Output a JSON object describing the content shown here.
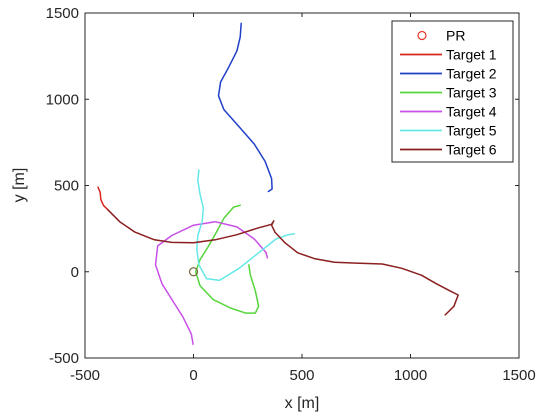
{
  "chart_data": {
    "type": "line",
    "xlabel": "x [m]",
    "ylabel": "y [m]",
    "xlim": [
      -500,
      1500
    ],
    "ylim": [
      -500,
      1500
    ],
    "xticks": [
      -500,
      0,
      500,
      1000,
      1500
    ],
    "yticks": [
      -500,
      0,
      500,
      1000,
      1500
    ],
    "xtick_labels": [
      "-500",
      "0",
      "500",
      "1000",
      "1500"
    ],
    "ytick_labels": [
      "-500",
      "0",
      "500",
      "1000",
      "1500"
    ],
    "grid": false,
    "legend_position": "top-right",
    "marker": {
      "name": "PR",
      "x": 0,
      "y": 0,
      "symbol": "circle",
      "color": "#e8392a"
    },
    "series": [
      {
        "name": "Target 1",
        "color": "#d9261c",
        "points": [
          [
            -440,
            490
          ],
          [
            -430,
            460
          ],
          [
            -427,
            420
          ],
          [
            -415,
            385
          ],
          [
            -395,
            360
          ]
        ]
      },
      {
        "name": "Target 2",
        "color": "#1f3fc8",
        "points": [
          [
            220,
            1440
          ],
          [
            215,
            1360
          ],
          [
            200,
            1280
          ],
          [
            160,
            1180
          ],
          [
            125,
            1100
          ],
          [
            115,
            1020
          ],
          [
            140,
            940
          ],
          [
            210,
            840
          ],
          [
            280,
            740
          ],
          [
            330,
            640
          ],
          [
            360,
            540
          ],
          [
            362,
            480
          ],
          [
            345,
            465
          ]
        ]
      },
      {
        "name": "Target 3",
        "color": "#55d63b",
        "points": [
          [
            215,
            385
          ],
          [
            185,
            375
          ],
          [
            140,
            310
          ],
          [
            110,
            240
          ],
          [
            70,
            150
          ],
          [
            30,
            70
          ],
          [
            10,
            0
          ],
          [
            30,
            -80
          ],
          [
            90,
            -160
          ],
          [
            170,
            -210
          ],
          [
            240,
            -240
          ],
          [
            285,
            -240
          ],
          [
            300,
            -200
          ],
          [
            285,
            -110
          ],
          [
            262,
            -20
          ],
          [
            255,
            40
          ]
        ]
      },
      {
        "name": "Target 4",
        "color": "#c84fe8",
        "points": [
          [
            -2,
            -420
          ],
          [
            -10,
            -360
          ],
          [
            -50,
            -260
          ],
          [
            -100,
            -160
          ],
          [
            -145,
            -70
          ],
          [
            -175,
            40
          ],
          [
            -165,
            150
          ],
          [
            -100,
            210
          ],
          [
            0,
            270
          ],
          [
            100,
            290
          ],
          [
            200,
            260
          ],
          [
            280,
            190
          ],
          [
            335,
            110
          ],
          [
            340,
            80
          ]
        ]
      },
      {
        "name": "Target 5",
        "color": "#66e8e8",
        "points": [
          [
            25,
            590
          ],
          [
            20,
            530
          ],
          [
            30,
            450
          ],
          [
            45,
            370
          ],
          [
            40,
            290
          ],
          [
            20,
            210
          ],
          [
            15,
            130
          ],
          [
            25,
            40
          ],
          [
            60,
            -40
          ],
          [
            120,
            -50
          ],
          [
            210,
            20
          ],
          [
            300,
            110
          ],
          [
            380,
            190
          ],
          [
            435,
            215
          ],
          [
            465,
            220
          ]
        ]
      },
      {
        "name": "Target 6",
        "color": "#8b1f1f",
        "points": [
          [
            -395,
            360
          ],
          [
            -340,
            290
          ],
          [
            -270,
            230
          ],
          [
            -180,
            185
          ],
          [
            -100,
            170
          ],
          [
            0,
            168
          ],
          [
            100,
            185
          ],
          [
            200,
            215
          ],
          [
            300,
            255
          ],
          [
            360,
            275
          ],
          [
            370,
            295
          ],
          [
            360,
            270
          ],
          [
            375,
            230
          ],
          [
            420,
            170
          ],
          [
            480,
            110
          ],
          [
            560,
            75
          ],
          [
            650,
            55
          ],
          [
            750,
            50
          ],
          [
            870,
            45
          ],
          [
            960,
            20
          ],
          [
            1050,
            -20
          ],
          [
            1120,
            -70
          ],
          [
            1180,
            -110
          ],
          [
            1220,
            -135
          ],
          [
            1200,
            -200
          ],
          [
            1160,
            -250
          ]
        ]
      }
    ]
  }
}
